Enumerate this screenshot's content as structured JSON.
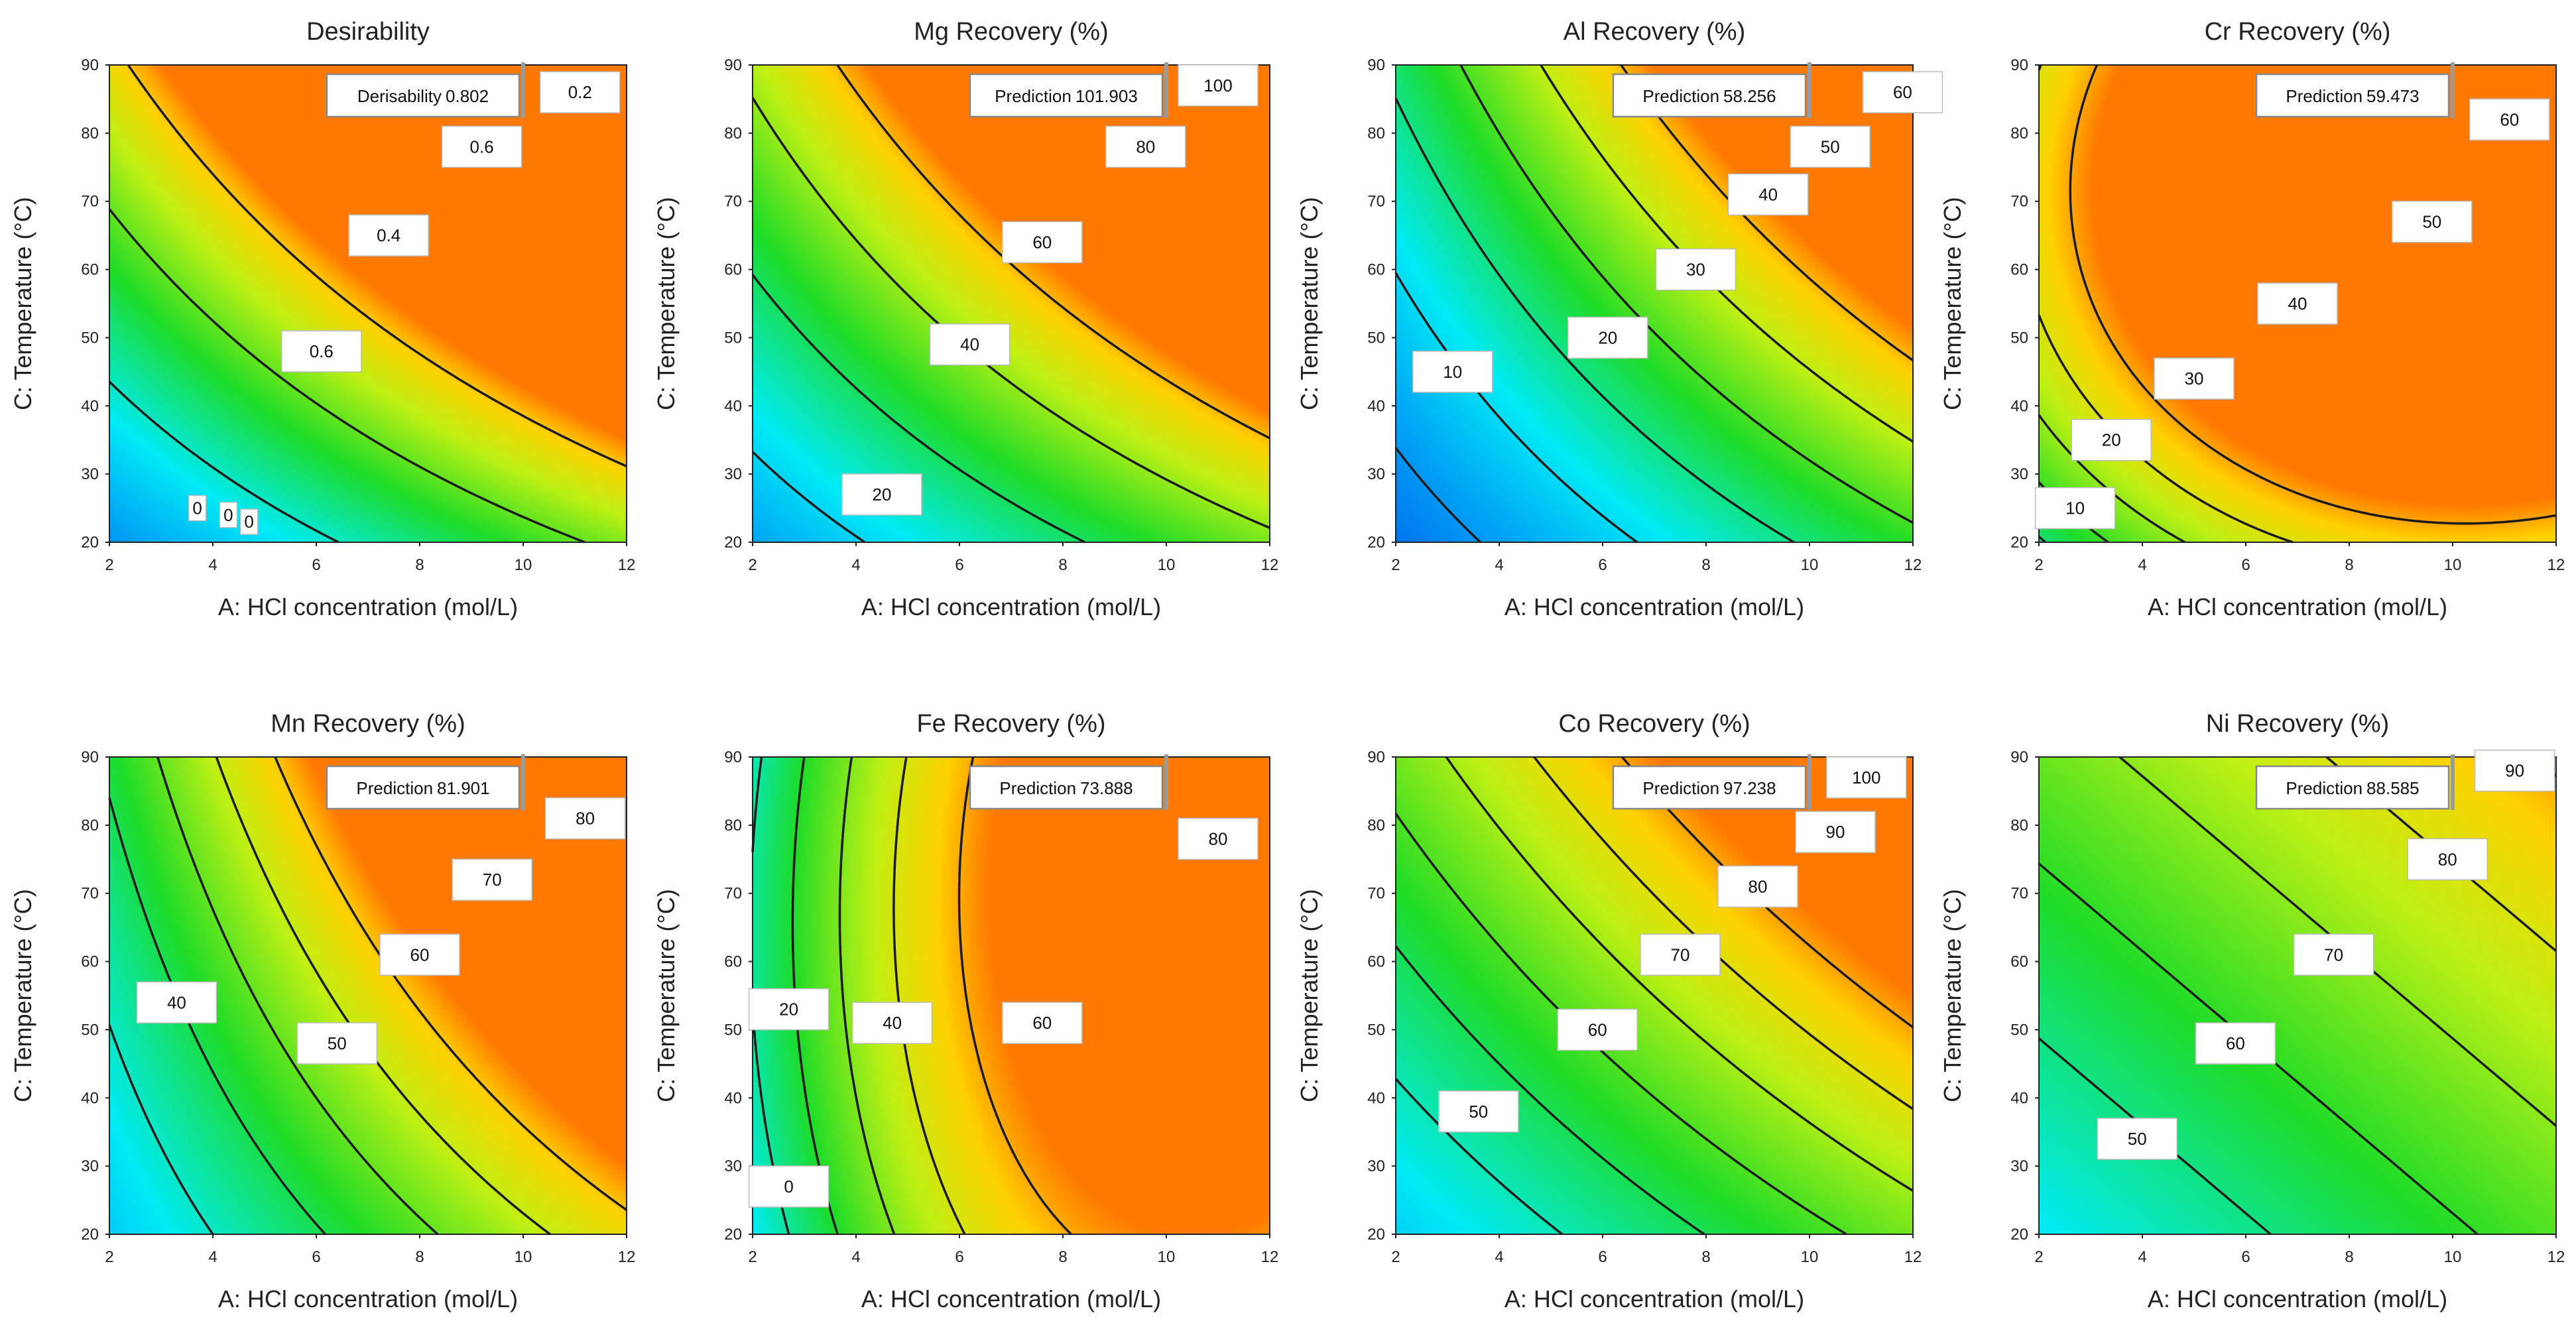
{
  "chart_data": [
    {
      "type": "contour",
      "title": "Desirability",
      "xlabel": "A: HCl concentration (mol/L)",
      "ylabel": "C: Temperature (°C)",
      "xlim": [
        2,
        12
      ],
      "ylim": [
        20,
        90
      ],
      "xticks": [
        "2",
        "4",
        "6",
        "8",
        "10",
        "12"
      ],
      "yticks": [
        "20",
        "30",
        "40",
        "50",
        "60",
        "70",
        "80",
        "90"
      ],
      "surface": {
        "kind": "saddle",
        "z0": 0.0,
        "a": 0.028,
        "b": 0.0065,
        "c": 0.0007,
        "zmax": 0.86
      },
      "contour_levels": [
        0.2,
        0.4,
        0.6,
        0.8
      ],
      "contour_labels": [
        {
          "text": "0.2",
          "x": 11.1,
          "y": 86
        },
        {
          "text": "0.6",
          "x": 9.2,
          "y": 78
        },
        {
          "text": "0.4",
          "x": 7.4,
          "y": 65
        },
        {
          "text": "0.6",
          "x": 6.1,
          "y": 48
        },
        {
          "text": "0",
          "x": 3.7,
          "y": 25
        },
        {
          "text": "0",
          "x": 4.3,
          "y": 24
        },
        {
          "text": "0",
          "x": 4.7,
          "y": 23
        }
      ],
      "prediction": {
        "label": "Derisability",
        "value": "0.802",
        "x": 10,
        "y": 90
      }
    },
    {
      "type": "contour",
      "title": "Mg Recovery  (%)",
      "xlabel": "A: HCl concentration (mol/L)",
      "ylabel": "C: Temperature (°C)",
      "xlim": [
        2,
        12
      ],
      "ylim": [
        20,
        90
      ],
      "xticks": [
        "2",
        "4",
        "6",
        "8",
        "10",
        "12"
      ],
      "yticks": [
        "20",
        "30",
        "40",
        "50",
        "60",
        "70",
        "80",
        "90"
      ],
      "surface": {
        "kind": "saddle",
        "z0": 8,
        "a": 3.2,
        "b": 0.62,
        "c": 0.075,
        "zmax": 106
      },
      "contour_levels": [
        20,
        40,
        60,
        80,
        100
      ],
      "contour_labels": [
        {
          "text": "100",
          "x": 11,
          "y": 87
        },
        {
          "text": "80",
          "x": 9.6,
          "y": 78
        },
        {
          "text": "60",
          "x": 7.6,
          "y": 64
        },
        {
          "text": "40",
          "x": 6.2,
          "y": 49
        },
        {
          "text": "20",
          "x": 4.5,
          "y": 27
        }
      ],
      "prediction": {
        "label": "Prediction",
        "value": "101.903",
        "x": 10,
        "y": 90
      }
    },
    {
      "type": "contour",
      "title": "Al Recovery  (%)",
      "xlabel": "A: HCl concentration (mol/L)",
      "ylabel": "C: Temperature (°C)",
      "xlim": [
        2,
        12
      ],
      "ylim": [
        20,
        90
      ],
      "xticks": [
        "2",
        "4",
        "6",
        "8",
        "10",
        "12"
      ],
      "yticks": [
        "20",
        "30",
        "40",
        "50",
        "60",
        "70",
        "80",
        "90"
      ],
      "surface": {
        "kind": "saddle",
        "z0": -8,
        "a": 2.4,
        "b": 0.3,
        "c": 0.045,
        "zmax": 64
      },
      "contour_levels": [
        10,
        20,
        30,
        40,
        50,
        60
      ],
      "contour_labels": [
        {
          "text": "60",
          "x": 11.8,
          "y": 86
        },
        {
          "text": "50",
          "x": 10.4,
          "y": 78
        },
        {
          "text": "40",
          "x": 9.2,
          "y": 71
        },
        {
          "text": "30",
          "x": 7.8,
          "y": 60
        },
        {
          "text": "20",
          "x": 6.1,
          "y": 50
        },
        {
          "text": "10",
          "x": 3.1,
          "y": 45
        }
      ],
      "prediction": {
        "label": "Prediction",
        "value": "58.256",
        "x": 10,
        "y": 90
      }
    },
    {
      "type": "contour",
      "title": "Cr Recovery  (%)",
      "xlabel": "A: HCl concentration (mol/L)",
      "ylabel": "C: Temperature (°C)",
      "xlim": [
        2,
        12
      ],
      "ylim": [
        20,
        90
      ],
      "xticks": [
        "2",
        "4",
        "6",
        "8",
        "10",
        "12"
      ],
      "yticks": [
        "20",
        "30",
        "40",
        "50",
        "60",
        "70",
        "80",
        "90"
      ],
      "surface": {
        "kind": "ridge",
        "z0": -34,
        "a": 11.0,
        "aa": -0.55,
        "b": 1.9,
        "bb": -0.0135,
        "c": 0.012,
        "zmax": 64
      },
      "contour_levels": [
        10,
        20,
        30,
        40,
        50,
        60
      ],
      "contour_labels": [
        {
          "text": "60",
          "x": 11.1,
          "y": 82
        },
        {
          "text": "50",
          "x": 9.6,
          "y": 67
        },
        {
          "text": "40",
          "x": 7.0,
          "y": 55
        },
        {
          "text": "30",
          "x": 5.0,
          "y": 44
        },
        {
          "text": "20",
          "x": 3.4,
          "y": 35
        },
        {
          "text": "10",
          "x": 2.7,
          "y": 25
        }
      ],
      "prediction": {
        "label": "Prediction",
        "value": "59.473",
        "x": 10,
        "y": 90
      }
    },
    {
      "type": "contour",
      "title": "Mn Recovery  (%)",
      "xlabel": "A: HCl concentration (mol/L)",
      "ylabel": "C: Temperature (°C)",
      "xlim": [
        2,
        12
      ],
      "ylim": [
        20,
        90
      ],
      "xticks": [
        "2",
        "4",
        "6",
        "8",
        "10",
        "12"
      ],
      "yticks": [
        "20",
        "30",
        "40",
        "50",
        "60",
        "70",
        "80",
        "90"
      ],
      "surface": {
        "kind": "saddle",
        "z0": 18,
        "a": 3.4,
        "b": 0.18,
        "c": 0.06,
        "zmax": 86
      },
      "contour_levels": [
        40,
        50,
        60,
        70,
        80
      ],
      "contour_labels": [
        {
          "text": "80",
          "x": 11.2,
          "y": 81
        },
        {
          "text": "70",
          "x": 9.4,
          "y": 72
        },
        {
          "text": "60",
          "x": 8.0,
          "y": 61
        },
        {
          "text": "50",
          "x": 6.4,
          "y": 48
        },
        {
          "text": "40",
          "x": 3.3,
          "y": 54
        }
      ],
      "prediction": {
        "label": "Prediction",
        "value": "81.901",
        "x": 10,
        "y": 90
      }
    },
    {
      "type": "contour",
      "title": "Fe Recovery  (%)",
      "xlabel": "A: HCl concentration (mol/L)",
      "ylabel": "C: Temperature (°C)",
      "xlim": [
        2,
        12
      ],
      "ylim": [
        20,
        90
      ],
      "xticks": [
        "2",
        "4",
        "6",
        "8",
        "10",
        "12"
      ],
      "yticks": [
        "20",
        "30",
        "40",
        "50",
        "60",
        "70",
        "80",
        "90"
      ],
      "surface": {
        "kind": "ridge",
        "z0": -90,
        "a": 30.0,
        "aa": -1.45,
        "b": 1.1,
        "bb": -0.0088,
        "c": 0.02,
        "zmax": 88
      },
      "contour_levels": [
        0,
        20,
        40,
        60,
        80
      ],
      "contour_labels": [
        {
          "text": "80",
          "x": 11.0,
          "y": 78
        },
        {
          "text": "60",
          "x": 7.6,
          "y": 51
        },
        {
          "text": "40",
          "x": 4.7,
          "y": 51
        },
        {
          "text": "20",
          "x": 2.7,
          "y": 53
        },
        {
          "text": "0",
          "x": 2.7,
          "y": 27
        }
      ],
      "prediction": {
        "label": "Prediction",
        "value": "73.888",
        "x": 10,
        "y": 90
      }
    },
    {
      "type": "contour",
      "title": "Co Recovery  (%)",
      "xlabel": "A: HCl concentration (mol/L)",
      "ylabel": "C: Temperature (°C)",
      "xlim": [
        2,
        12
      ],
      "ylim": [
        20,
        90
      ],
      "xticks": [
        "2",
        "4",
        "6",
        "8",
        "10",
        "12"
      ],
      "yticks": [
        "20",
        "30",
        "40",
        "50",
        "60",
        "70",
        "80",
        "90"
      ],
      "surface": {
        "kind": "saddle",
        "z0": 22,
        "a": 3.0,
        "b": 0.45,
        "c": 0.032,
        "zmax": 104
      },
      "contour_levels": [
        50,
        60,
        70,
        80,
        90,
        100
      ],
      "contour_labels": [
        {
          "text": "100",
          "x": 11.1,
          "y": 87
        },
        {
          "text": "90",
          "x": 10.5,
          "y": 79
        },
        {
          "text": "80",
          "x": 9.0,
          "y": 71
        },
        {
          "text": "70",
          "x": 7.5,
          "y": 61
        },
        {
          "text": "60",
          "x": 5.9,
          "y": 50
        },
        {
          "text": "50",
          "x": 3.6,
          "y": 38
        }
      ],
      "prediction": {
        "label": "Prediction",
        "value": "97.238",
        "x": 10,
        "y": 90
      }
    },
    {
      "type": "contour",
      "title": "Ni Recovery  (%)",
      "xlabel": "A: HCl concentration (mol/L)",
      "ylabel": "C: Temperature (°C)",
      "xlim": [
        2,
        12
      ],
      "ylim": [
        20,
        90
      ],
      "xticks": [
        "2",
        "4",
        "6",
        "8",
        "10",
        "12"
      ],
      "yticks": [
        "20",
        "30",
        "40",
        "50",
        "60",
        "70",
        "80",
        "90"
      ],
      "surface": {
        "kind": "saddle",
        "z0": 26,
        "a": 2.5,
        "b": 0.39,
        "c": 0.0,
        "zmax": 94
      },
      "contour_levels": [
        50,
        60,
        70,
        80,
        90
      ],
      "contour_labels": [
        {
          "text": "90",
          "x": 11.2,
          "y": 88
        },
        {
          "text": "80",
          "x": 9.9,
          "y": 75
        },
        {
          "text": "70",
          "x": 7.7,
          "y": 61
        },
        {
          "text": "60",
          "x": 5.8,
          "y": 48
        },
        {
          "text": "50",
          "x": 3.9,
          "y": 34
        }
      ],
      "prediction": {
        "label": "Prediction",
        "value": "88.585",
        "x": 10,
        "y": 90
      }
    }
  ]
}
